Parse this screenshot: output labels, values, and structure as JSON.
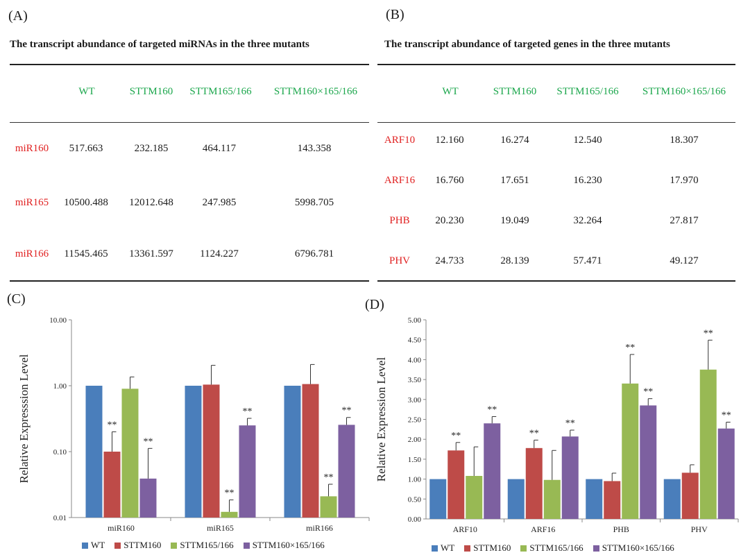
{
  "panels": {
    "a": "(A)",
    "b": "(B)",
    "c": "(C)",
    "d": "(D)"
  },
  "tables": [
    {
      "title": "The transcript  abundance  of  targeted  miRNAs  in  the  three  mutants",
      "headers": [
        "WT",
        "STTM160",
        "STTM165/166",
        "STTM160×165/166"
      ],
      "rows": [
        {
          "label": "miR160",
          "values": [
            "517.663",
            "232.185",
            "464.117",
            "143.358"
          ]
        },
        {
          "label": "miR165",
          "values": [
            "10500.488",
            "12012.648",
            "247.985",
            "5998.705"
          ]
        },
        {
          "label": "miR166",
          "values": [
            "11545.465",
            "13361.597",
            "1124.227",
            "6796.781"
          ]
        }
      ]
    },
    {
      "title": "The transcript  abundance  of  targeted  genes  in  the  three  mutants",
      "headers": [
        "WT",
        "STTM160",
        "STTM165/166",
        "STTM160×165/166"
      ],
      "rows": [
        {
          "label": "ARF10",
          "values": [
            "12.160",
            "16.274",
            "12.540",
            "18.307"
          ]
        },
        {
          "label": "ARF16",
          "values": [
            "16.760",
            "17.651",
            "16.230",
            "17.970"
          ]
        },
        {
          "label": "PHB",
          "values": [
            "20.230",
            "19.049",
            "32.264",
            "27.817"
          ]
        },
        {
          "label": "PHV",
          "values": [
            "24.733",
            "28.139",
            "57.471",
            "49.127"
          ]
        }
      ]
    }
  ],
  "colors": {
    "WT": "#4a7ebb",
    "STTM160": "#be4b48",
    "STTM165/166": "#98b954",
    "STTM160x165/166": "#7d60a0"
  },
  "chart_data": [
    {
      "type": "bar",
      "scale": "log",
      "ylabel": "Relative  Expresssion Level",
      "ylim": [
        0.01,
        10
      ],
      "yticks": [
        "0.01",
        "0.10",
        "1.00",
        "10.00"
      ],
      "categories": [
        "miR160",
        "miR165",
        "miR166"
      ],
      "series": [
        {
          "name": "WT",
          "values": [
            1.0,
            1.0,
            1.0
          ],
          "errors": [
            0,
            0,
            0
          ],
          "sig": [
            "",
            "",
            ""
          ]
        },
        {
          "name": "STTM160",
          "values": [
            0.1,
            1.04,
            1.06
          ],
          "errors": [
            0.1,
            1.0,
            1.04
          ],
          "sig": [
            "**",
            "",
            ""
          ]
        },
        {
          "name": "STTM165/166",
          "values": [
            0.9,
            0.0122,
            0.021
          ],
          "errors": [
            0.46,
            0.0063,
            0.011
          ],
          "sig": [
            "",
            "**",
            "**"
          ]
        },
        {
          "name": "STTM160×165/166",
          "values": [
            0.039,
            0.25,
            0.255
          ],
          "errors": [
            0.073,
            0.07,
            0.075
          ],
          "sig": [
            "**",
            "**",
            "**"
          ]
        }
      ]
    },
    {
      "type": "bar",
      "scale": "linear",
      "ylabel": "Relative  Expression Level",
      "ylim": [
        0,
        5
      ],
      "yticks": [
        "0.00",
        "0.50",
        "1.00",
        "1.50",
        "2.00",
        "2.50",
        "3.00",
        "3.50",
        "4.00",
        "4.50",
        "5.00"
      ],
      "categories": [
        "ARF10",
        "ARF16",
        "PHB",
        "PHV"
      ],
      "series": [
        {
          "name": "WT",
          "values": [
            1.0,
            1.0,
            1.0,
            1.0
          ],
          "errors": [
            0,
            0,
            0,
            0
          ],
          "sig": [
            "",
            "",
            "",
            ""
          ]
        },
        {
          "name": "STTM160",
          "values": [
            1.72,
            1.78,
            0.95,
            1.16
          ],
          "errors": [
            0.2,
            0.2,
            0.2,
            0.2
          ],
          "sig": [
            "**",
            "**",
            "",
            ""
          ]
        },
        {
          "name": "STTM165/166",
          "values": [
            1.08,
            0.98,
            3.4,
            3.75
          ],
          "errors": [
            0.73,
            0.74,
            0.73,
            0.74
          ],
          "sig": [
            "",
            "",
            "**",
            "**"
          ]
        },
        {
          "name": "STTM160×165/166",
          "values": [
            2.4,
            2.07,
            2.85,
            2.27
          ],
          "errors": [
            0.17,
            0.16,
            0.17,
            0.16
          ],
          "sig": [
            "**",
            "**",
            "**",
            "**"
          ]
        }
      ]
    }
  ]
}
